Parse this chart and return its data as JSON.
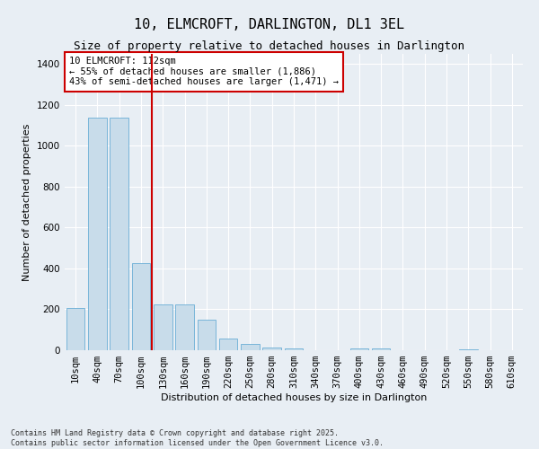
{
  "title": "10, ELMCROFT, DARLINGTON, DL1 3EL",
  "subtitle": "Size of property relative to detached houses in Darlington",
  "xlabel": "Distribution of detached houses by size in Darlington",
  "ylabel": "Number of detached properties",
  "categories": [
    "10sqm",
    "40sqm",
    "70sqm",
    "100sqm",
    "130sqm",
    "160sqm",
    "190sqm",
    "220sqm",
    "250sqm",
    "280sqm",
    "310sqm",
    "340sqm",
    "370sqm",
    "400sqm",
    "430sqm",
    "460sqm",
    "490sqm",
    "520sqm",
    "550sqm",
    "580sqm",
    "610sqm"
  ],
  "values": [
    205,
    1140,
    1140,
    425,
    225,
    225,
    150,
    55,
    30,
    15,
    10,
    0,
    0,
    8,
    8,
    0,
    0,
    0,
    5,
    0,
    0
  ],
  "bar_color": "#c8dcea",
  "bar_edge_color": "#6aaed6",
  "vline_color": "#cc0000",
  "vline_x_index": 3,
  "annotation_text": "10 ELMCROFT: 112sqm\n← 55% of detached houses are smaller (1,886)\n43% of semi-detached houses are larger (1,471) →",
  "annotation_box_facecolor": "#ffffff",
  "annotation_box_edgecolor": "#cc0000",
  "ylim": [
    0,
    1450
  ],
  "yticks": [
    0,
    200,
    400,
    600,
    800,
    1000,
    1200,
    1400
  ],
  "background_color": "#e8eef4",
  "grid_color": "#ffffff",
  "footer_text": "Contains HM Land Registry data © Crown copyright and database right 2025.\nContains public sector information licensed under the Open Government Licence v3.0.",
  "title_fontsize": 11,
  "subtitle_fontsize": 9,
  "xlabel_fontsize": 8,
  "ylabel_fontsize": 8,
  "tick_fontsize": 7.5,
  "annotation_fontsize": 7.5,
  "footer_fontsize": 6
}
